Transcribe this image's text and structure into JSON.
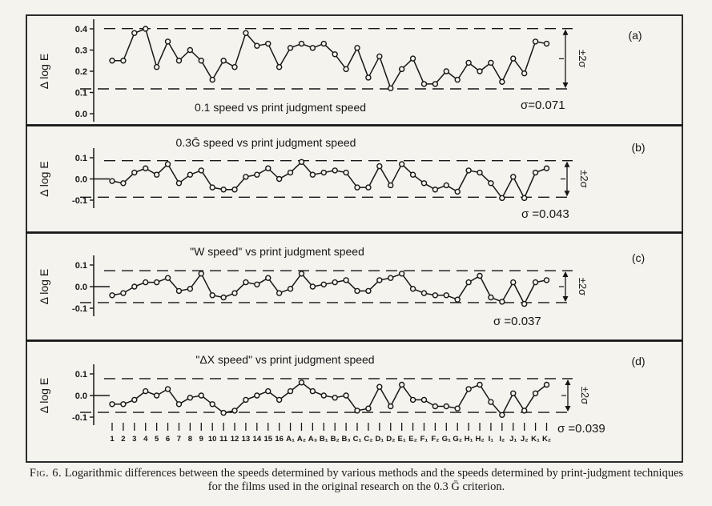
{
  "chart_data": [
    {
      "type": "line",
      "panel_label": "(a)",
      "title": "0.1 speed vs print judgment speed",
      "ylabel": "Δ log E",
      "sigma_text": "σ=0.071",
      "band_label": "±2σ",
      "ylim": [
        0.0,
        0.4
      ],
      "yticks": [
        "0.4",
        "0.3",
        "0.2",
        "0.1",
        "0.0"
      ],
      "ytick_values": [
        0.4,
        0.3,
        0.2,
        0.1,
        0.0
      ],
      "band": [
        0.117,
        0.401
      ],
      "values": [
        0.25,
        0.25,
        0.38,
        0.4,
        0.22,
        0.34,
        0.25,
        0.3,
        0.25,
        0.16,
        0.25,
        0.22,
        0.38,
        0.32,
        0.33,
        0.22,
        0.31,
        0.33,
        0.31,
        0.33,
        0.28,
        0.21,
        0.31,
        0.17,
        0.27,
        0.12,
        0.21,
        0.26,
        0.14,
        0.14,
        0.2,
        0.16,
        0.24,
        0.2,
        0.24,
        0.15,
        0.26,
        0.19,
        0.34,
        0.33
      ]
    },
    {
      "type": "line",
      "panel_label": "(b)",
      "title": "0.3Ḡ speed vs print judgment speed",
      "ylabel": "Δ log E",
      "sigma_text": "σ =0.043",
      "band_label": "±2σ",
      "ylim": [
        -0.1,
        0.1
      ],
      "yticks": [
        "0.1",
        "0.0",
        "-0.1"
      ],
      "ytick_values": [
        0.1,
        0.0,
        -0.1
      ],
      "band": [
        -0.086,
        0.086
      ],
      "values": [
        -0.01,
        -0.02,
        0.03,
        0.05,
        0.02,
        0.07,
        -0.02,
        0.02,
        0.04,
        -0.04,
        -0.05,
        -0.05,
        0.01,
        0.02,
        0.05,
        0.0,
        0.03,
        0.08,
        0.02,
        0.03,
        0.04,
        0.03,
        -0.04,
        -0.04,
        0.06,
        -0.03,
        0.07,
        0.02,
        -0.02,
        -0.05,
        -0.03,
        -0.06,
        0.04,
        0.03,
        -0.02,
        -0.09,
        0.01,
        -0.09,
        0.03,
        0.05
      ]
    },
    {
      "type": "line",
      "panel_label": "(c)",
      "title": "\"W speed\"  vs print judgment speed",
      "ylabel": "Δ log E",
      "sigma_text": "σ =0.037",
      "band_label": "±2σ",
      "ylim": [
        -0.1,
        0.1
      ],
      "yticks": [
        "0.1",
        "0.0",
        "-0.1"
      ],
      "ytick_values": [
        0.1,
        0.0,
        -0.1
      ],
      "band": [
        -0.074,
        0.074
      ],
      "values": [
        -0.04,
        -0.03,
        0.0,
        0.02,
        0.02,
        0.04,
        -0.02,
        -0.01,
        0.06,
        -0.04,
        -0.05,
        -0.03,
        0.02,
        0.01,
        0.04,
        -0.03,
        -0.01,
        0.06,
        0.0,
        0.01,
        0.02,
        0.03,
        -0.02,
        -0.02,
        0.03,
        0.04,
        0.06,
        -0.01,
        -0.03,
        -0.04,
        -0.04,
        -0.06,
        0.02,
        0.05,
        -0.05,
        -0.07,
        0.02,
        -0.08,
        0.02,
        0.03
      ]
    },
    {
      "type": "line",
      "panel_label": "(d)",
      "title": "\"ΔX speed\"  vs print judgment speed",
      "ylabel": "Δ log E",
      "sigma_text": "σ =0.039",
      "band_label": "±2σ",
      "ylim": [
        -0.1,
        0.1
      ],
      "yticks": [
        "0.1",
        "0.0",
        "-0.1"
      ],
      "ytick_values": [
        0.1,
        0.0,
        -0.1
      ],
      "band": [
        -0.078,
        0.078
      ],
      "values": [
        -0.04,
        -0.04,
        -0.02,
        0.02,
        0.0,
        0.03,
        -0.04,
        -0.01,
        0.0,
        -0.04,
        -0.08,
        -0.07,
        -0.02,
        0.0,
        0.02,
        -0.02,
        0.02,
        0.06,
        0.02,
        0.0,
        -0.01,
        0.0,
        -0.07,
        -0.06,
        0.04,
        -0.05,
        0.05,
        -0.02,
        -0.02,
        -0.05,
        -0.05,
        -0.06,
        0.03,
        0.05,
        -0.03,
        -0.09,
        0.01,
        -0.07,
        0.01,
        0.05
      ]
    }
  ],
  "x_categories": [
    "1",
    "2",
    "3",
    "4",
    "5",
    "6",
    "7",
    "8",
    "9",
    "10",
    "11",
    "12",
    "13",
    "14",
    "15",
    "16",
    "A₁",
    "A₂",
    "A₃",
    "B₁",
    "B₂",
    "B₃",
    "C₁",
    "C₂",
    "D₁",
    "D₂",
    "E₁",
    "E₂",
    "F₁",
    "F₂",
    "G₁",
    "G₂",
    "H₁",
    "H₂",
    "I₁",
    "I₂",
    "J₁",
    "J₂",
    "K₁",
    "K₂"
  ],
  "caption": {
    "label": "Fig. 6.",
    "text": " Logarithmic differences between the speeds determined by various methods and the speeds determined by print-judgment techniques for the films used in the original research on the 0.3 Ḡ criterion."
  }
}
